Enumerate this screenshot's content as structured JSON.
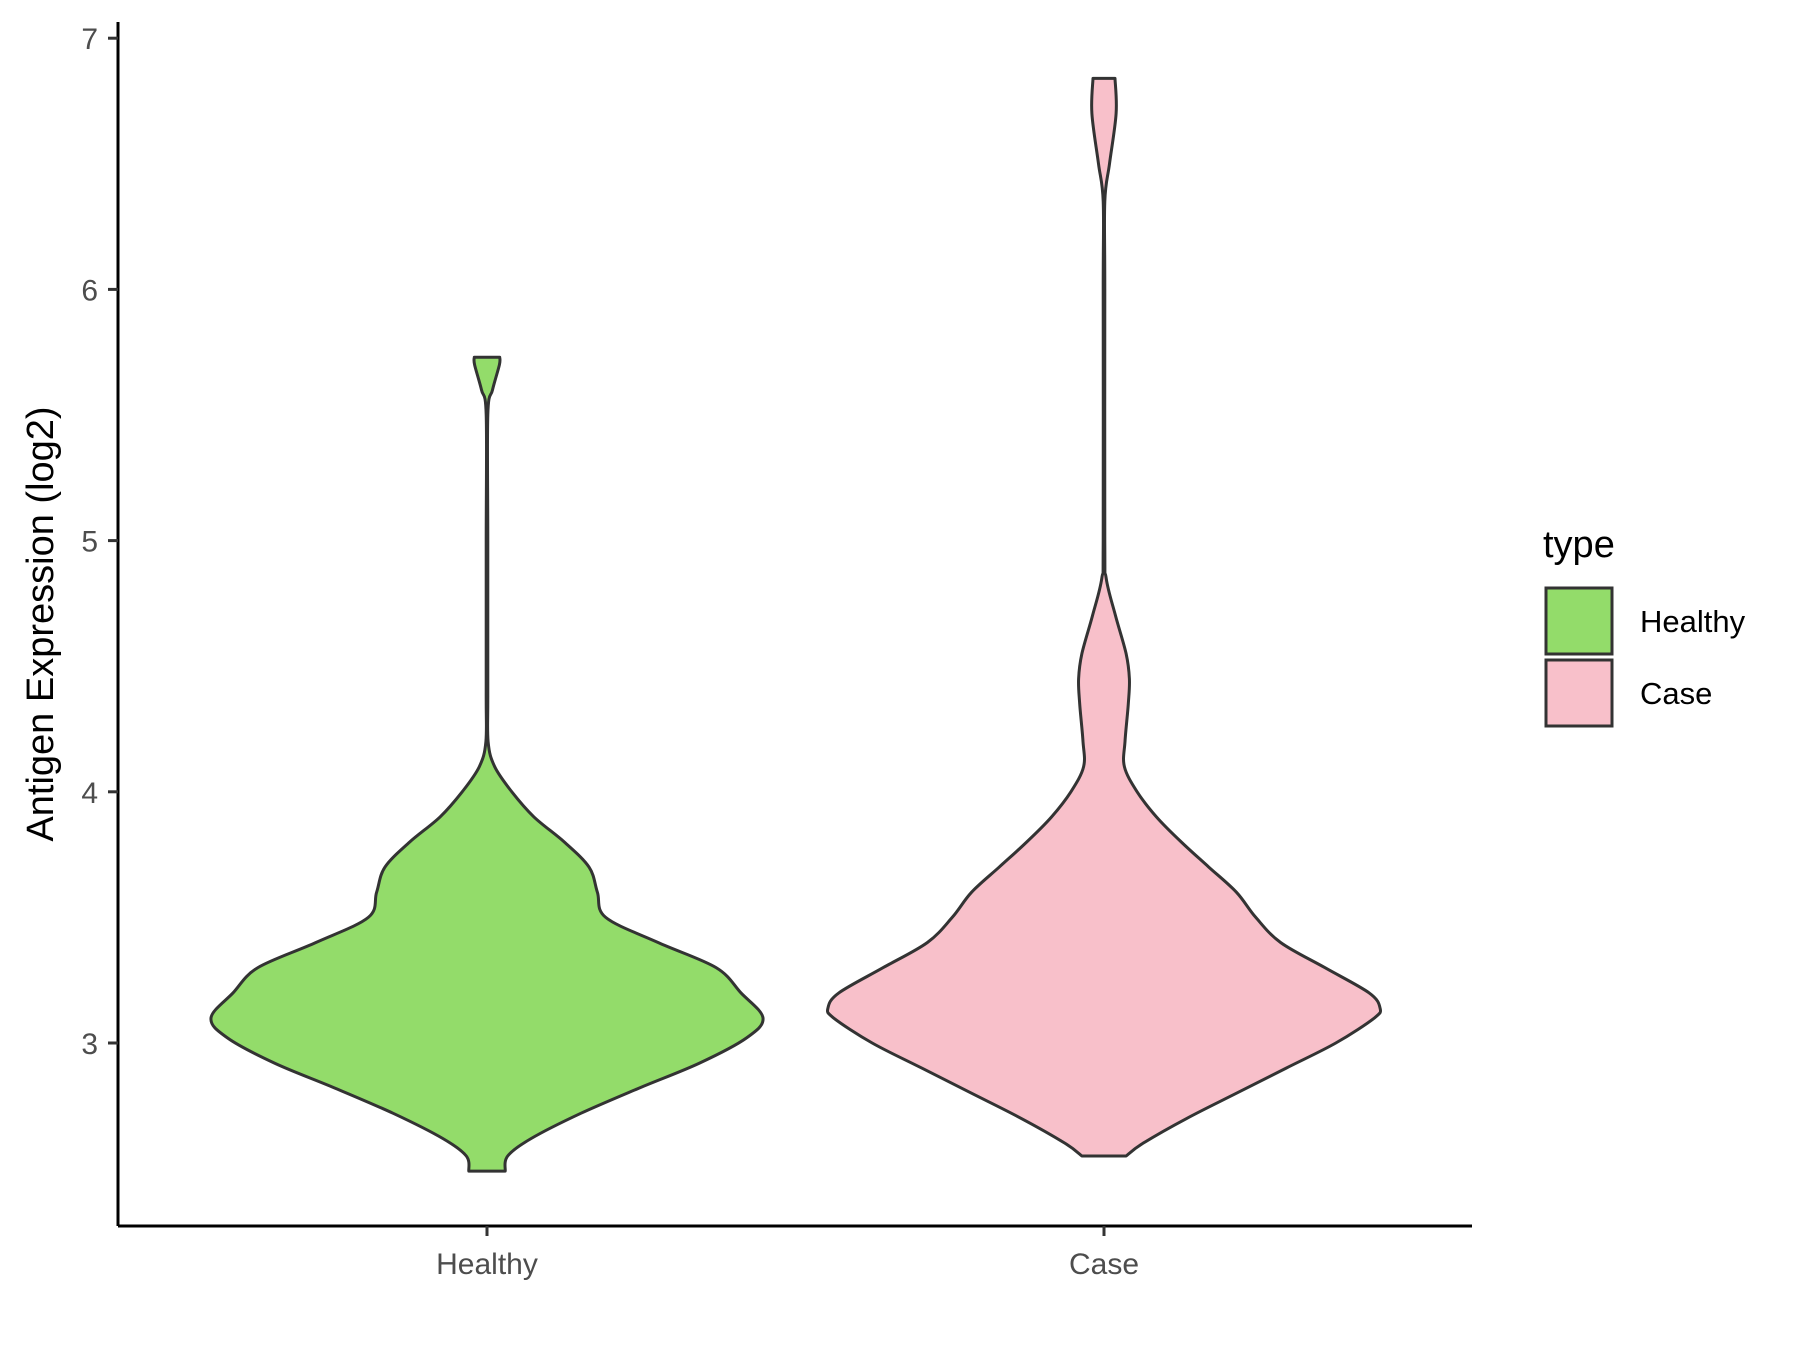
{
  "chart_data": {
    "type": "violin",
    "title": "",
    "xlabel": "",
    "ylabel": "Antigen Expression (log2)",
    "ylim": [
      2.4,
      7.05
    ],
    "y_ticks": [
      "3",
      "4",
      "5",
      "6",
      "7"
    ],
    "y_tick_values": [
      3,
      4,
      5,
      6,
      7
    ],
    "categories": [
      "Healthy",
      "Case"
    ],
    "grid": false,
    "legend": {
      "title": "type",
      "position": "right",
      "entries": [
        "Healthy",
        "Case"
      ]
    },
    "series": [
      {
        "category": "Healthy",
        "color": "#93dc6a",
        "y_min": 2.49,
        "y_max": 5.73,
        "density_profile": [
          [
            2.49,
            0.066
          ],
          [
            2.55,
            0.075
          ],
          [
            2.62,
            0.16
          ],
          [
            2.72,
            0.34
          ],
          [
            2.82,
            0.55
          ],
          [
            2.92,
            0.77
          ],
          [
            3.02,
            0.94
          ],
          [
            3.1,
            1.0
          ],
          [
            3.2,
            0.92
          ],
          [
            3.3,
            0.83
          ],
          [
            3.4,
            0.62
          ],
          [
            3.5,
            0.43
          ],
          [
            3.6,
            0.4
          ],
          [
            3.7,
            0.37
          ],
          [
            3.8,
            0.28
          ],
          [
            3.9,
            0.17
          ],
          [
            4.0,
            0.09
          ],
          [
            4.1,
            0.028
          ],
          [
            4.2,
            0.004
          ],
          [
            4.4,
            0.003
          ],
          [
            5.0,
            0.003
          ],
          [
            5.5,
            0.003
          ],
          [
            5.6,
            0.02
          ],
          [
            5.7,
            0.045
          ],
          [
            5.73,
            0.046
          ]
        ]
      },
      {
        "category": "Case",
        "color": "#f8c0ca",
        "y_min": 2.55,
        "y_max": 6.84,
        "density_profile": [
          [
            2.55,
            0.08
          ],
          [
            2.6,
            0.14
          ],
          [
            2.7,
            0.3
          ],
          [
            2.8,
            0.48
          ],
          [
            2.9,
            0.66
          ],
          [
            3.0,
            0.84
          ],
          [
            3.1,
            0.98
          ],
          [
            3.14,
            1.0
          ],
          [
            3.2,
            0.96
          ],
          [
            3.3,
            0.8
          ],
          [
            3.4,
            0.64
          ],
          [
            3.5,
            0.55
          ],
          [
            3.6,
            0.48
          ],
          [
            3.7,
            0.38
          ],
          [
            3.8,
            0.28
          ],
          [
            3.9,
            0.19
          ],
          [
            4.0,
            0.12
          ],
          [
            4.1,
            0.074
          ],
          [
            4.2,
            0.076
          ],
          [
            4.35,
            0.088
          ],
          [
            4.45,
            0.092
          ],
          [
            4.55,
            0.08
          ],
          [
            4.7,
            0.042
          ],
          [
            4.85,
            0.008
          ],
          [
            5.0,
            0.003
          ],
          [
            6.0,
            0.003
          ],
          [
            6.35,
            0.003
          ],
          [
            6.5,
            0.02
          ],
          [
            6.7,
            0.044
          ],
          [
            6.84,
            0.04
          ]
        ]
      }
    ]
  }
}
